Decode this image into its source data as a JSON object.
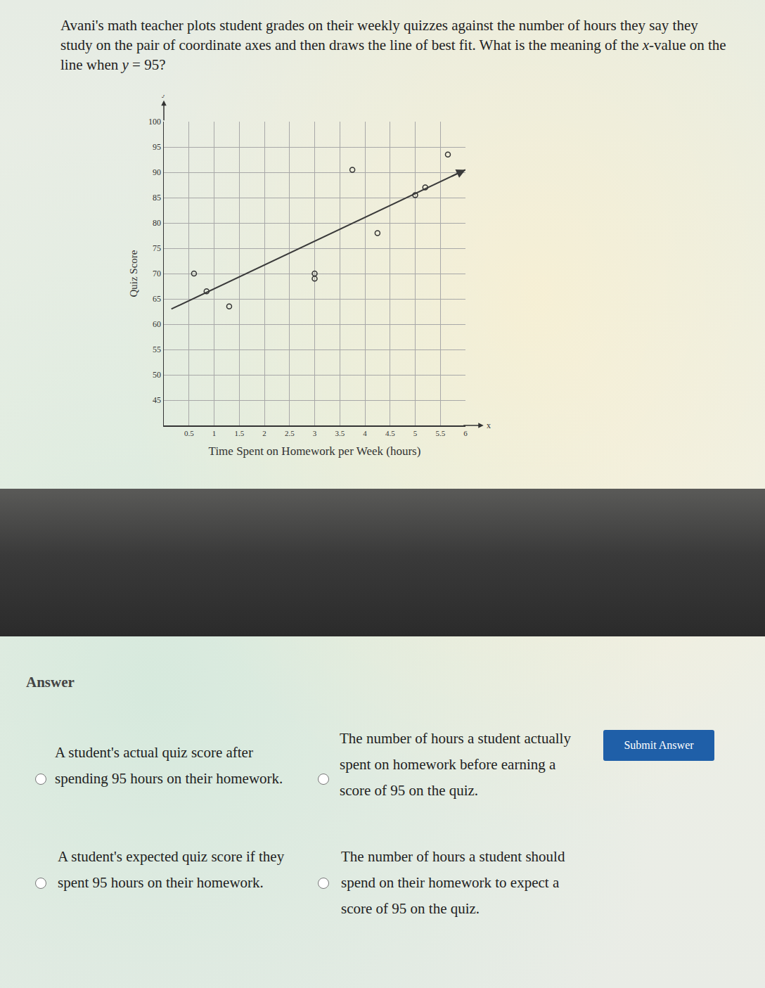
{
  "question": [
    {
      "text": "Avani's math teacher plots student grades on their weekly quizzes against the number of hours they say they study on the pair of coordinate axes and then draws the line of best fit. What is the meaning of the "
    },
    {
      "text": "x",
      "italic": true
    },
    {
      "text": "-value on the line when "
    },
    {
      "text": "y",
      "italic": true
    },
    {
      "text": " = 95?"
    }
  ],
  "chart_data": {
    "type": "scatter",
    "x_label": "Time Spent on Homework per Week (hours)",
    "y_label": "Quiz Score",
    "axis_letters": {
      "x": "x",
      "y": "y"
    },
    "x": [
      0.6,
      0.85,
      1.3,
      3,
      3,
      3.75,
      4.25,
      5,
      5.2,
      5.65
    ],
    "values": [
      70,
      66.5,
      63.5,
      70,
      69,
      90.5,
      78,
      85.5,
      87,
      93.5
    ],
    "marker": "open circle",
    "color": "#333333",
    "fit_line": {
      "x": [
        0.15,
        6
      ],
      "values": [
        63,
        90.5
      ],
      "color": "#3a3a3a"
    },
    "xlim": [
      0,
      6
    ],
    "xticks": [
      0.5,
      1,
      1.5,
      2,
      2.5,
      3,
      3.5,
      4,
      4.5,
      5,
      5.5,
      6
    ],
    "ylim": [
      40,
      100
    ],
    "yticks": [
      45,
      50,
      55,
      60,
      65,
      70,
      75,
      80,
      85,
      90,
      95,
      100
    ],
    "grid": true
  },
  "answer": {
    "heading": "Answer",
    "options": [
      "A student's actual quiz score after spending 95 hours on their homework.",
      "The number of hours a student actually spent on homework before earning a score of 95 on the quiz.",
      "A student's expected quiz score if they spent 95 hours on their homework.",
      "The number of hours a student should spend on their homework to expect a score of 95 on the quiz."
    ],
    "button": "Submit Answer"
  }
}
